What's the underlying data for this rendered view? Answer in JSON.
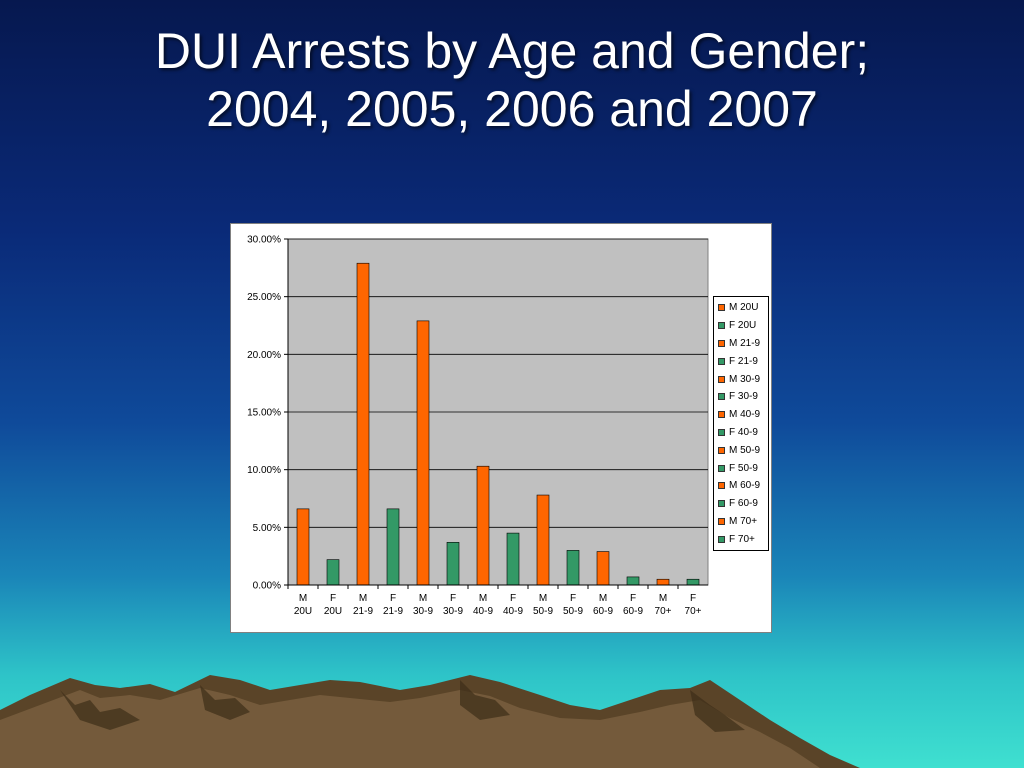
{
  "slide": {
    "title_line1": "DUI Arrests by Age and Gender;",
    "title_line2": "2004, 2005, 2006 and 2007"
  },
  "colors": {
    "male": "#ff6600",
    "female": "#339966",
    "plot_bg": "#c0c0c0"
  },
  "chart_data": {
    "type": "bar",
    "categories": [
      [
        "M",
        "20U"
      ],
      [
        "F",
        "20U"
      ],
      [
        "M",
        "21-9"
      ],
      [
        "F",
        "21-9"
      ],
      [
        "M",
        "30-9"
      ],
      [
        "F",
        "30-9"
      ],
      [
        "M",
        "40-9"
      ],
      [
        "F",
        "40-9"
      ],
      [
        "M",
        "50-9"
      ],
      [
        "F",
        "50-9"
      ],
      [
        "M",
        "60-9"
      ],
      [
        "F",
        "60-9"
      ],
      [
        "M",
        "70+"
      ],
      [
        "F",
        "70+"
      ]
    ],
    "values": [
      6.6,
      2.2,
      27.9,
      6.6,
      22.9,
      3.7,
      10.3,
      4.5,
      7.8,
      3.0,
      2.9,
      0.7,
      0.5,
      0.5
    ],
    "legend": [
      "M 20U",
      "F 20U",
      "M 21-9",
      "F 21-9",
      "M 30-9",
      "F 30-9",
      "M 40-9",
      "F 40-9",
      "M 50-9",
      "F 50-9",
      "M 60-9",
      "F 60-9",
      "M 70+",
      "F 70+"
    ],
    "y_ticks": [
      "0.00%",
      "5.00%",
      "10.00%",
      "15.00%",
      "20.00%",
      "25.00%",
      "30.00%"
    ],
    "ylim": [
      0,
      30
    ],
    "y_format": "percent",
    "grid": true,
    "legend_position": "right"
  }
}
